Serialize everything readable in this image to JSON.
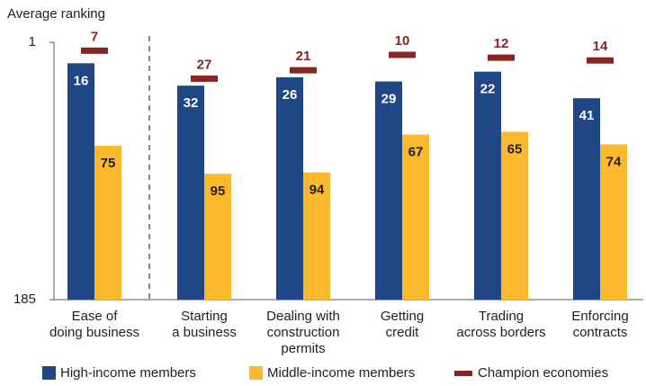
{
  "chart_data": {
    "type": "bar",
    "ylabel": "Average ranking",
    "categories": [
      [
        "Ease of",
        "doing business"
      ],
      [
        "Starting",
        "a business"
      ],
      [
        "Dealing with",
        "construction",
        "permits"
      ],
      [
        "Getting",
        "credit"
      ],
      [
        "Trading",
        "across borders"
      ],
      [
        "Enforcing",
        "contracts"
      ]
    ],
    "series": [
      {
        "name": "High-income members",
        "color": "#1f4685",
        "style": "bar",
        "values": [
          16,
          32,
          26,
          29,
          22,
          41
        ]
      },
      {
        "name": "Middle-income members",
        "color": "#fdb92e",
        "style": "bar",
        "values": [
          75,
          95,
          94,
          67,
          65,
          74
        ]
      },
      {
        "name": "Champion economies",
        "color": "#8b2323",
        "style": "dash",
        "values": [
          7,
          27,
          21,
          10,
          12,
          14
        ]
      }
    ],
    "ylim": [
      185,
      1
    ],
    "yticks": [
      1,
      185
    ]
  }
}
